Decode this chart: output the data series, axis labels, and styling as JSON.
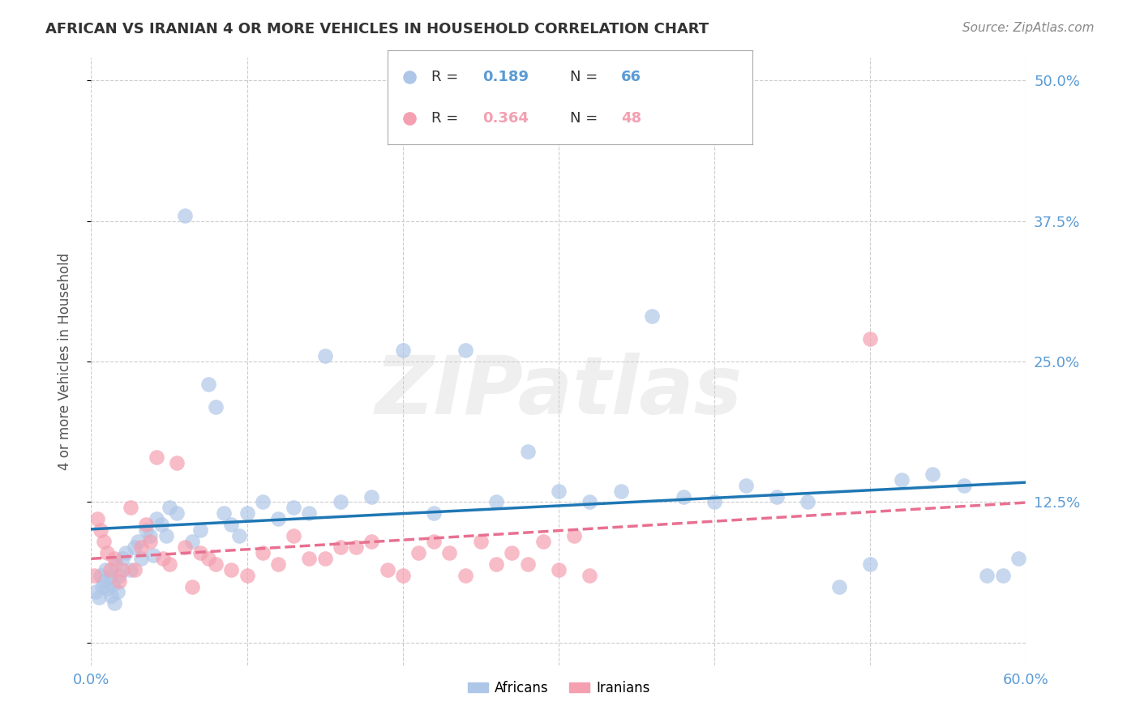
{
  "title": "AFRICAN VS IRANIAN 4 OR MORE VEHICLES IN HOUSEHOLD CORRELATION CHART",
  "source": "Source: ZipAtlas.com",
  "xlabel": "",
  "ylabel": "4 or more Vehicles in Household",
  "xlim": [
    0.0,
    0.6
  ],
  "ylim": [
    -0.02,
    0.52
  ],
  "xticks": [
    0.0,
    0.1,
    0.2,
    0.3,
    0.4,
    0.5,
    0.6
  ],
  "xticklabels": [
    "0.0%",
    "",
    "",
    "",
    "",
    "",
    "60.0%"
  ],
  "yticks": [
    0.0,
    0.125,
    0.25,
    0.375,
    0.5
  ],
  "yticklabels": [
    "",
    "12.5%",
    "25.0%",
    "37.5%",
    "50.0%"
  ],
  "grid_color": "#cccccc",
  "background_color": "#ffffff",
  "africans_color": "#aec6e8",
  "iranians_color": "#f4a0b0",
  "africans_line_color": "#1f77b4",
  "iranians_line_color": "#e87090",
  "africans_R": 0.189,
  "africans_N": 66,
  "iranians_R": 0.364,
  "iranians_N": 48,
  "watermark": "ZIPatlas",
  "africans_x": [
    0.003,
    0.005,
    0.006,
    0.007,
    0.008,
    0.009,
    0.01,
    0.012,
    0.013,
    0.014,
    0.015,
    0.016,
    0.017,
    0.018,
    0.02,
    0.022,
    0.025,
    0.028,
    0.03,
    0.032,
    0.035,
    0.038,
    0.04,
    0.042,
    0.045,
    0.048,
    0.05,
    0.055,
    0.06,
    0.065,
    0.07,
    0.075,
    0.08,
    0.085,
    0.09,
    0.095,
    0.1,
    0.11,
    0.12,
    0.13,
    0.14,
    0.15,
    0.16,
    0.18,
    0.2,
    0.22,
    0.24,
    0.26,
    0.28,
    0.3,
    0.32,
    0.34,
    0.36,
    0.38,
    0.4,
    0.42,
    0.44,
    0.46,
    0.48,
    0.5,
    0.52,
    0.54,
    0.56,
    0.575,
    0.585,
    0.595
  ],
  "africans_y": [
    0.045,
    0.04,
    0.06,
    0.05,
    0.055,
    0.065,
    0.048,
    0.058,
    0.042,
    0.052,
    0.035,
    0.07,
    0.045,
    0.06,
    0.075,
    0.08,
    0.065,
    0.085,
    0.09,
    0.075,
    0.1,
    0.095,
    0.078,
    0.11,
    0.105,
    0.095,
    0.12,
    0.115,
    0.38,
    0.09,
    0.1,
    0.23,
    0.21,
    0.115,
    0.105,
    0.095,
    0.115,
    0.125,
    0.11,
    0.12,
    0.115,
    0.255,
    0.125,
    0.13,
    0.26,
    0.115,
    0.26,
    0.125,
    0.17,
    0.135,
    0.125,
    0.135,
    0.29,
    0.13,
    0.125,
    0.14,
    0.13,
    0.125,
    0.05,
    0.07,
    0.145,
    0.15,
    0.14,
    0.06,
    0.06,
    0.075
  ],
  "iranians_x": [
    0.002,
    0.004,
    0.006,
    0.008,
    0.01,
    0.012,
    0.015,
    0.018,
    0.02,
    0.025,
    0.028,
    0.032,
    0.035,
    0.038,
    0.042,
    0.046,
    0.05,
    0.055,
    0.06,
    0.065,
    0.07,
    0.075,
    0.08,
    0.09,
    0.1,
    0.11,
    0.12,
    0.13,
    0.14,
    0.15,
    0.16,
    0.17,
    0.18,
    0.19,
    0.2,
    0.21,
    0.22,
    0.23,
    0.24,
    0.25,
    0.26,
    0.27,
    0.28,
    0.29,
    0.3,
    0.31,
    0.32,
    0.5
  ],
  "iranians_y": [
    0.06,
    0.11,
    0.1,
    0.09,
    0.08,
    0.065,
    0.075,
    0.055,
    0.065,
    0.12,
    0.065,
    0.085,
    0.105,
    0.09,
    0.165,
    0.075,
    0.07,
    0.16,
    0.085,
    0.05,
    0.08,
    0.075,
    0.07,
    0.065,
    0.06,
    0.08,
    0.07,
    0.095,
    0.075,
    0.075,
    0.085,
    0.085,
    0.09,
    0.065,
    0.06,
    0.08,
    0.09,
    0.08,
    0.06,
    0.09,
    0.07,
    0.08,
    0.07,
    0.09,
    0.065,
    0.095,
    0.06,
    0.27
  ]
}
